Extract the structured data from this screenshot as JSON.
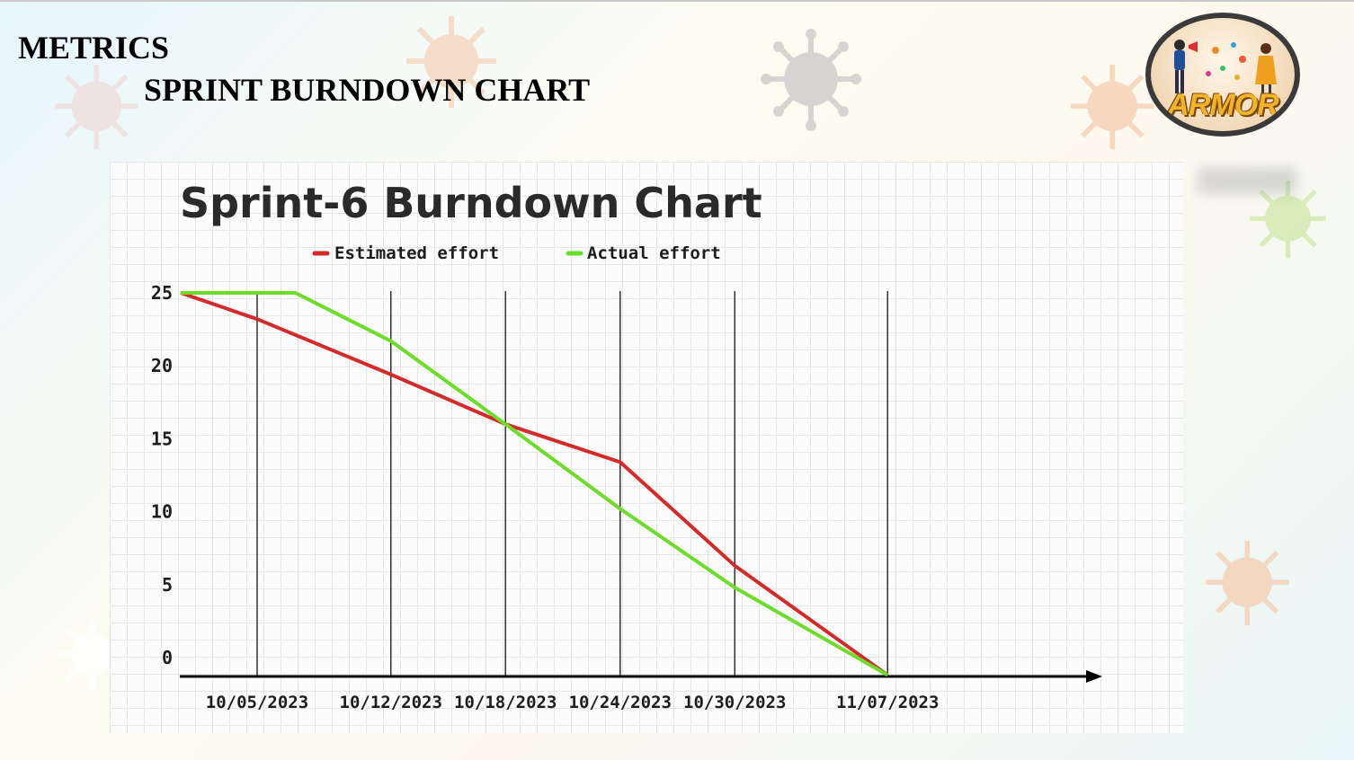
{
  "slide": {
    "heading": "METRICS",
    "subheading": "SPRINT BURNDOWN CHART"
  },
  "logo": {
    "text": "ARMOR",
    "icon": "team-illustration-icon"
  },
  "colors": {
    "estimated": "#d42a2a",
    "actual": "#6edc2a",
    "axis": "#000000",
    "gridline": "#333333"
  },
  "chart_data": {
    "type": "line",
    "title": "Sprint-6 Burndown Chart",
    "xlabel": "",
    "ylabel": "",
    "x": [
      "10/05/2023",
      "10/12/2023",
      "10/18/2023",
      "10/24/2023",
      "10/30/2023",
      "11/07/2023"
    ],
    "yticks": [
      0,
      5,
      10,
      15,
      20,
      25
    ],
    "ylim": [
      -1.2,
      25
    ],
    "grid": true,
    "legend_position": "top",
    "series": [
      {
        "name": "Estimated effort",
        "color": "#d42a2a",
        "points": [
          [
            "10/01/2023",
            25
          ],
          [
            "10/05/2023",
            23.2
          ],
          [
            "10/12/2023",
            19.4
          ],
          [
            "10/18/2023",
            16
          ],
          [
            "10/24/2023",
            13.4
          ],
          [
            "10/30/2023",
            6.3
          ],
          [
            "11/07/2023",
            -1.2
          ]
        ]
      },
      {
        "name": "Actual effort",
        "color": "#6edc2a",
        "points": [
          [
            "10/01/2023",
            25
          ],
          [
            "10/07/2023",
            25
          ],
          [
            "10/12/2023",
            21.7
          ],
          [
            "10/18/2023",
            16
          ],
          [
            "10/24/2023",
            10.2
          ],
          [
            "10/30/2023",
            4.8
          ],
          [
            "11/07/2023",
            -1.2
          ]
        ]
      }
    ]
  }
}
